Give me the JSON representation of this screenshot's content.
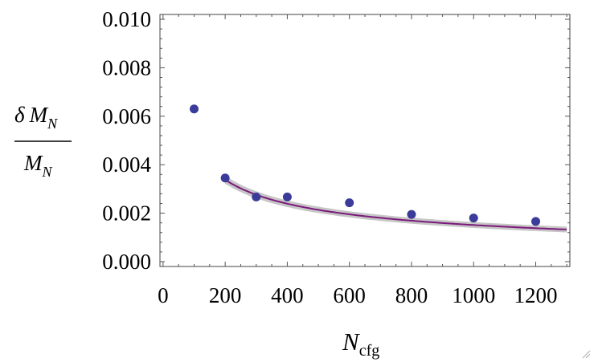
{
  "chart_data": {
    "type": "scatter",
    "title": "",
    "xlabel": {
      "main": "N",
      "sub": "cfg"
    },
    "ylabel": {
      "numerator_prefix": "δ",
      "numerator_main": "M",
      "numerator_sub": "N",
      "denominator_main": "M",
      "denominator_sub": "N"
    },
    "xlim": [
      -10,
      1310
    ],
    "ylim": [
      -0.0002,
      0.0102
    ],
    "x_ticks": [
      0,
      200,
      400,
      600,
      800,
      1000,
      1200
    ],
    "x_tick_labels": [
      "0",
      "200",
      "400",
      "600",
      "800",
      "1000",
      "1200"
    ],
    "y_ticks": [
      0.0,
      0.002,
      0.004,
      0.006,
      0.008,
      0.01
    ],
    "y_tick_labels": [
      "0.000",
      "0.002",
      "0.004",
      "0.006",
      "0.008",
      "0.010"
    ],
    "series": [
      {
        "name": "data",
        "kind": "points",
        "color": "#3b3b9a",
        "x": [
          100,
          200,
          300,
          400,
          600,
          800,
          1000,
          1200
        ],
        "y": [
          0.0063,
          0.00345,
          0.00267,
          0.00267,
          0.00243,
          0.00195,
          0.0018,
          0.00166
        ]
      },
      {
        "name": "fit",
        "kind": "curve",
        "color": "#7b1a7b",
        "band_color": "#c6c6c6",
        "formula": "a / sqrt(x)",
        "a": 0.0478,
        "band_halfwidth": 0.00011,
        "x_range": [
          200,
          1300
        ]
      }
    ],
    "grid": false,
    "legend": "none"
  }
}
